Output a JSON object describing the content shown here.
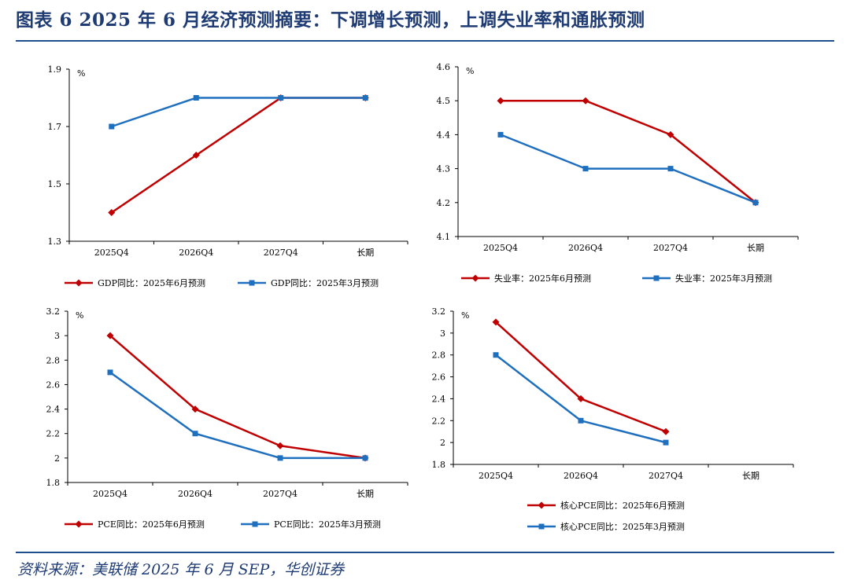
{
  "header": {
    "title": "图表 6   2025 年 6 月经济预测摘要：下调增长预测，上调失业率和通胀预测"
  },
  "footer": {
    "source": "资料来源：美联储 2025 年 6 月 SEP，华创证券"
  },
  "colors": {
    "jun": "#c00000",
    "mar": "#1f6fbf",
    "rule": "#1f4e8c",
    "title": "#1f3b73"
  },
  "chart_data": [
    {
      "id": "gdp",
      "type": "line",
      "categories": [
        "2025Q4",
        "2026Q4",
        "2027Q4",
        "长期"
      ],
      "unit": "%",
      "ylim": [
        1.3,
        1.9
      ],
      "yticks": [
        "1.3",
        "1.5",
        "1.7",
        "1.9"
      ],
      "series": [
        {
          "name": "GDP同比：2025年6月预测",
          "marker": "diamond",
          "color": "#c00000",
          "values": [
            1.4,
            1.6,
            1.8,
            1.8
          ]
        },
        {
          "name": "GDP同比：2025年3月预测",
          "marker": "square",
          "color": "#1f6fbf",
          "values": [
            1.7,
            1.8,
            1.8,
            1.8
          ]
        }
      ],
      "legend": "bottom"
    },
    {
      "id": "unemployment",
      "type": "line",
      "categories": [
        "2025Q4",
        "2026Q4",
        "2027Q4",
        "长期"
      ],
      "unit": "%",
      "ylim": [
        4.1,
        4.6
      ],
      "yticks": [
        "4.1",
        "4.2",
        "4.3",
        "4.4",
        "4.5",
        "4.6"
      ],
      "series": [
        {
          "name": "失业率：2025年6月预测",
          "marker": "diamond",
          "color": "#c00000",
          "values": [
            4.5,
            4.5,
            4.4,
            4.2
          ]
        },
        {
          "name": "失业率：2025年3月预测",
          "marker": "square",
          "color": "#1f6fbf",
          "values": [
            4.4,
            4.3,
            4.3,
            4.2
          ]
        }
      ],
      "legend": "bottom"
    },
    {
      "id": "pce",
      "type": "line",
      "categories": [
        "2025Q4",
        "2026Q4",
        "2027Q4",
        "长期"
      ],
      "unit": "%",
      "ylim": [
        1.8,
        3.2
      ],
      "yticks": [
        "1.8",
        "2",
        "2.2",
        "2.4",
        "2.6",
        "2.8",
        "3",
        "3.2"
      ],
      "series": [
        {
          "name": "PCE同比：2025年6月预测",
          "marker": "diamond",
          "color": "#c00000",
          "values": [
            3.0,
            2.4,
            2.1,
            2.0
          ]
        },
        {
          "name": "PCE同比：2025年3月预测",
          "marker": "square",
          "color": "#1f6fbf",
          "values": [
            2.7,
            2.2,
            2.0,
            2.0
          ]
        }
      ],
      "legend": "bottom"
    },
    {
      "id": "core-pce",
      "type": "line",
      "categories": [
        "2025Q4",
        "2026Q4",
        "2027Q4",
        "长期"
      ],
      "unit": "%",
      "ylim": [
        1.8,
        3.2
      ],
      "yticks": [
        "1.8",
        "2",
        "2.2",
        "2.4",
        "2.6",
        "2.8",
        "3",
        "3.2"
      ],
      "series": [
        {
          "name": "核心PCE同比：2025年6月预测",
          "marker": "diamond",
          "color": "#c00000",
          "values": [
            3.1,
            2.4,
            2.1,
            null
          ]
        },
        {
          "name": "核心PCE同比：2025年3月预测",
          "marker": "square",
          "color": "#1f6fbf",
          "values": [
            2.8,
            2.2,
            2.0,
            null
          ]
        }
      ],
      "legend": "bottom-stacked"
    }
  ]
}
